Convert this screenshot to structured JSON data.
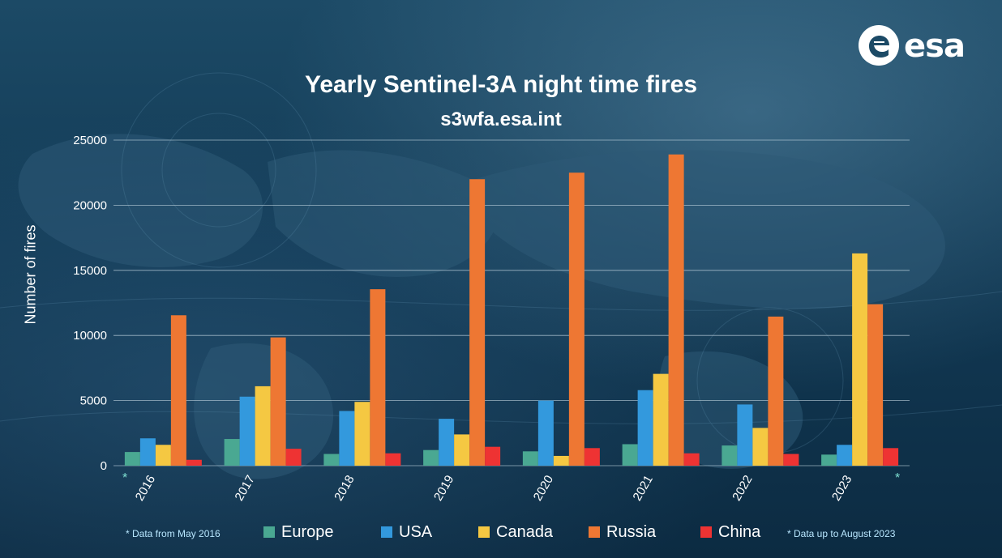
{
  "brand": {
    "logo_text": "esa"
  },
  "colors": {
    "Europe": "#4aa892",
    "USA": "#3399dd",
    "Canada": "#f5c842",
    "Russia": "#ee7733",
    "China": "#ee3333"
  },
  "footnotes": {
    "left": "* Data from May 2016",
    "right": "* Data up to August 2023",
    "left_star": "*",
    "right_star": "*"
  },
  "chart_data": {
    "type": "bar",
    "title": "Yearly Sentinel-3A night time fires",
    "subtitle": "s3wfa.esa.int",
    "xlabel": "",
    "ylabel": "Number of fires",
    "ylim": [
      0,
      25000
    ],
    "yticks": [
      0,
      5000,
      10000,
      15000,
      20000,
      25000
    ],
    "grid": true,
    "legend_position": "bottom",
    "categories": [
      "2016",
      "2017",
      "2018",
      "2019",
      "2020",
      "2021",
      "2022",
      "2023"
    ],
    "series": [
      {
        "name": "Europe",
        "values": [
          1050,
          2050,
          900,
          1200,
          1100,
          1650,
          1550,
          850
        ]
      },
      {
        "name": "USA",
        "values": [
          2100,
          5300,
          4200,
          3600,
          5000,
          5800,
          4700,
          1600
        ]
      },
      {
        "name": "Canada",
        "values": [
          1600,
          6100,
          4900,
          2400,
          750,
          7050,
          2900,
          16300
        ]
      },
      {
        "name": "Russia",
        "values": [
          11550,
          9850,
          13550,
          22000,
          22500,
          23900,
          11450,
          12400
        ]
      },
      {
        "name": "China",
        "values": [
          450,
          1300,
          950,
          1450,
          1350,
          950,
          900,
          1350
        ]
      }
    ]
  }
}
